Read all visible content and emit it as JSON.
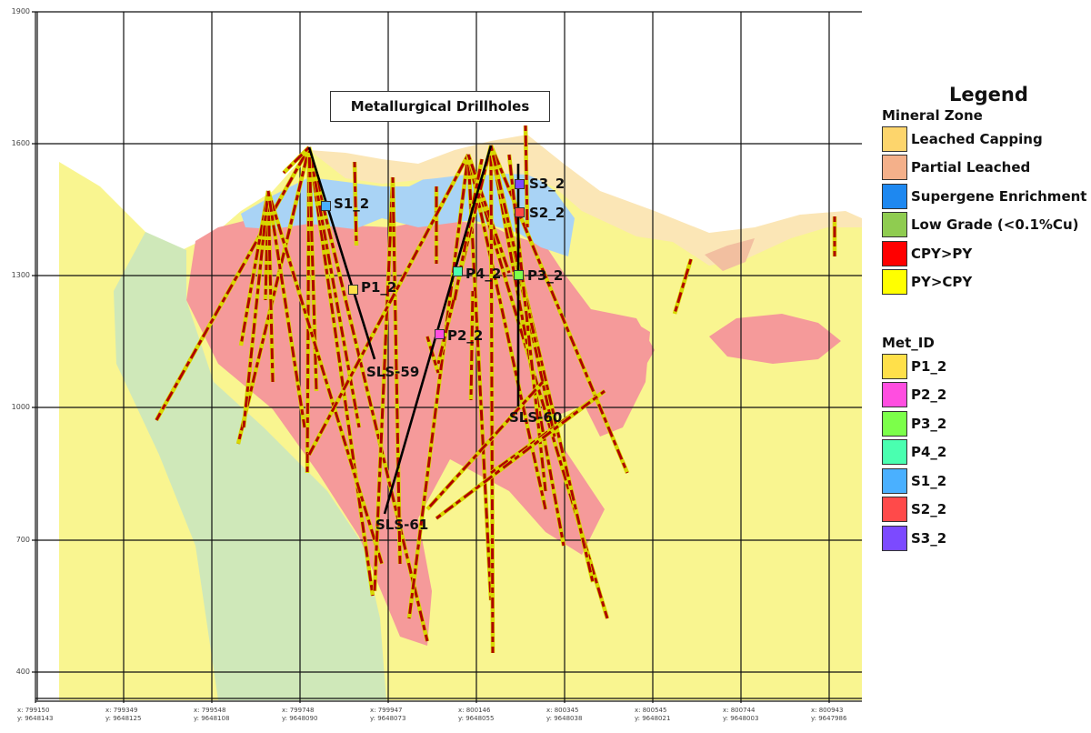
{
  "title": "Metallurgical Drillholes",
  "y_axis": {
    "ticks": [
      "1900",
      "1600",
      "1300",
      "1000",
      "700",
      "400"
    ]
  },
  "x_axis": {
    "ticks": [
      {
        "x": "x: 799150",
        "y": "y: 9648143"
      },
      {
        "x": "x: 799349",
        "y": "y: 9648125"
      },
      {
        "x": "x: 799548",
        "y": "y: 9648108"
      },
      {
        "x": "x: 799748",
        "y": "y: 9648090"
      },
      {
        "x": "x: 799947",
        "y": "y: 9648073"
      },
      {
        "x": "x: 800146",
        "y": "y: 9648055"
      },
      {
        "x": "x: 800345",
        "y": "y: 9648038"
      },
      {
        "x": "x: 800545",
        "y": "y: 9648021"
      },
      {
        "x": "x: 800744",
        "y": "y: 9648003"
      },
      {
        "x": "x: 800943",
        "y": "y: 9647986"
      }
    ]
  },
  "legend": {
    "title": "Legend",
    "mineral_zone": {
      "title": "Mineral Zone",
      "items": [
        {
          "label": "Leached Capping",
          "color": "#fdd56c"
        },
        {
          "label": "Partial Leached",
          "color": "#f4b08a"
        },
        {
          "label": "Supergene Enrichment",
          "color": "#1e88f0"
        },
        {
          "label": "Low Grade (<0.1%Cu)",
          "color": "#8fcc50"
        },
        {
          "label": "CPY>PY",
          "color": "#ff0000"
        },
        {
          "label": "PY>CPY",
          "color": "#ffff00"
        }
      ]
    },
    "met_id": {
      "title": "Met_ID",
      "items": [
        {
          "label": "P1_2",
          "color": "#ffe04a"
        },
        {
          "label": "P2_2",
          "color": "#ff4ee0"
        },
        {
          "label": "P3_2",
          "color": "#7cff4a"
        },
        {
          "label": "P4_2",
          "color": "#4affb0"
        },
        {
          "label": "S1_2",
          "color": "#4ab0ff"
        },
        {
          "label": "S2_2",
          "color": "#ff4a4a"
        },
        {
          "label": "S3_2",
          "color": "#7c4aff"
        }
      ]
    }
  },
  "drillholes": {
    "sls59": "SLS-59",
    "sls60": "SLS-60",
    "sls61": "SLS-61"
  }
}
